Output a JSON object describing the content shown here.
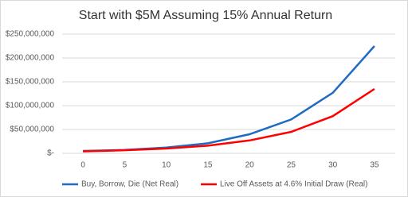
{
  "chart_data": {
    "type": "line",
    "title": "Start with $5M Assuming 15% Annual Return",
    "categories": [
      "0",
      "5",
      "10",
      "15",
      "20",
      "25",
      "30",
      "35"
    ],
    "series": [
      {
        "name": "Buy, Borrow, Die (Net Real)",
        "color": "#1f6bc0",
        "values": [
          5000000,
          7000000,
          12000000,
          21000000,
          40000000,
          71000000,
          127000000,
          225000000
        ]
      },
      {
        "name": "Live Off Assets at 4.6% Initial Draw (Real)",
        "color": "#ff0000",
        "values": [
          4000000,
          6500000,
          10000000,
          16000000,
          27000000,
          45000000,
          78000000,
          135000000
        ]
      }
    ],
    "ylim": [
      0,
      250000000
    ],
    "yticks": [
      {
        "value": 0,
        "label": "$-"
      },
      {
        "value": 50000000,
        "label": "$50,000,000"
      },
      {
        "value": 100000000,
        "label": "$100,000,000"
      },
      {
        "value": 150000000,
        "label": "$150,000,000"
      },
      {
        "value": 200000000,
        "label": "$200,000,000"
      },
      {
        "value": 250000000,
        "label": "$250,000,000"
      }
    ],
    "grid": true,
    "legend": "bottom"
  }
}
